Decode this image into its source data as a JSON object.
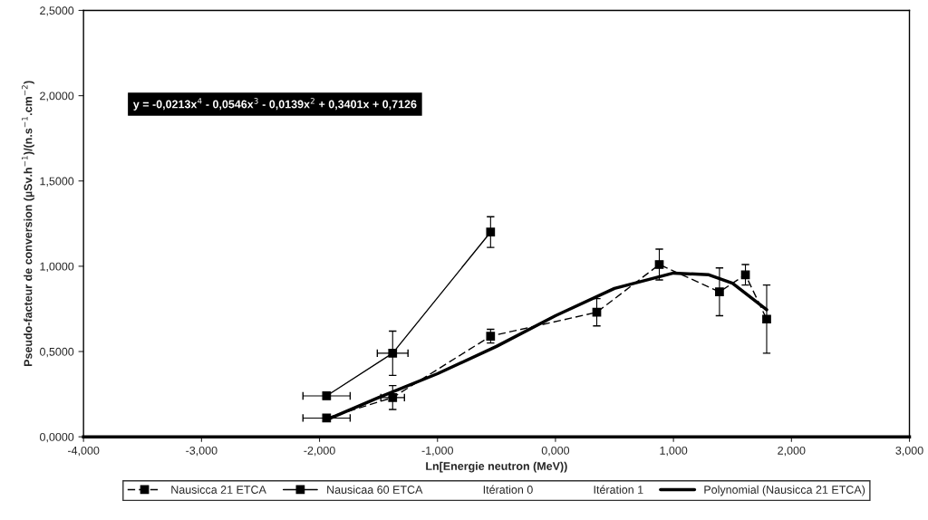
{
  "chart_data": {
    "type": "line",
    "xlabel": "Ln[Energie neutron (MeV))",
    "ylabel": "Pseudo-facteur de conversion (µSv.h$^{−1}$)/(n.s$^{−1}$.cm$^{−2}$)",
    "xlim": [
      -4,
      3
    ],
    "ylim": [
      0,
      2.5
    ],
    "xticks": [
      {
        "value": -4,
        "label": "-4,000"
      },
      {
        "value": -3,
        "label": "-3,000"
      },
      {
        "value": -2,
        "label": "-2,000"
      },
      {
        "value": -1,
        "label": "-1,000"
      },
      {
        "value": 0,
        "label": "0,000"
      },
      {
        "value": 1,
        "label": "1,000"
      },
      {
        "value": 2,
        "label": "2,000"
      },
      {
        "value": 3,
        "label": "3,000"
      }
    ],
    "yticks": [
      {
        "value": 0,
        "label": "0,0000"
      },
      {
        "value": 0.5,
        "label": "0,5000"
      },
      {
        "value": 1,
        "label": "1,0000"
      },
      {
        "value": 1.5,
        "label": "1,5000"
      },
      {
        "value": 2,
        "label": "2,0000"
      },
      {
        "value": 2.5,
        "label": "2,5000"
      }
    ],
    "grid": false,
    "legend": "bottom",
    "annotations": [
      "y = -0,0213x$^{4}$ - 0,0546x$^{3}$ - 0,0139x$^{2}$ + 0,3401x + 0,7126"
    ],
    "series": [
      {
        "name": "Nausicca 21 ETCA",
        "color": "#000000",
        "line_style": "dashed",
        "marker": "square",
        "x": [
          -1.94,
          -1.38,
          -0.55,
          0.35,
          0.88,
          1.39,
          1.61,
          1.79
        ],
        "values": [
          0.11,
          0.23,
          0.59,
          0.73,
          1.01,
          0.85,
          0.95,
          0.69
        ],
        "errors": [
          0.02,
          0.07,
          0.04,
          0.08,
          0.09,
          0.14,
          0.06,
          0.2
        ],
        "xerrors": [
          0.2,
          0.1,
          null,
          null,
          null,
          null,
          null,
          null
        ]
      },
      {
        "name": "Nausicaa 60 ETCA",
        "color": "#000000",
        "line_style": "solid",
        "marker": "square",
        "x": [
          -1.94,
          -1.38,
          -0.55
        ],
        "values": [
          0.24,
          0.49,
          1.2
        ],
        "errors": [
          null,
          0.13,
          0.09
        ],
        "xerrors": [
          0.2,
          0.13,
          null
        ]
      },
      {
        "name": "Itération 0",
        "marker": "none"
      },
      {
        "name": "Itération 1",
        "marker": "none"
      },
      {
        "name": "Polynomial (Nausicca 21 ETCA)",
        "type": "line",
        "color": "#000000",
        "line_style": "solid",
        "marker": "none",
        "x": [
          -1.94,
          -1.5,
          -1.0,
          -0.5,
          0.0,
          0.5,
          1.0,
          1.3,
          1.5,
          1.79
        ],
        "values": [
          0.1,
          0.23,
          0.37,
          0.53,
          0.71,
          0.87,
          0.96,
          0.95,
          0.9,
          0.745
        ]
      }
    ]
  }
}
